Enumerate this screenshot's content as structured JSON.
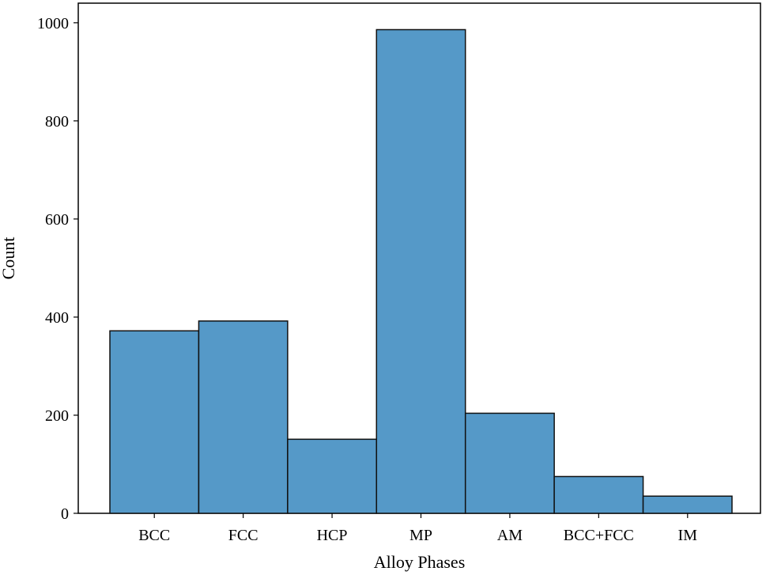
{
  "chart_data": {
    "type": "bar",
    "title": "",
    "xlabel": "Alloy Phases",
    "ylabel": "Count",
    "categories": [
      "BCC",
      "FCC",
      "HCP",
      "MP",
      "AM",
      "BCC+FCC",
      "IM"
    ],
    "values": [
      372,
      392,
      151,
      986,
      204,
      75,
      35
    ],
    "ylim": [
      0,
      1040
    ],
    "yticks": [
      0,
      200,
      400,
      600,
      800,
      1000
    ],
    "grid": false,
    "legend": "none",
    "colors": {
      "bar_fill": "#5599c8",
      "bar_edge": "#111111",
      "axes": "#000000"
    }
  }
}
